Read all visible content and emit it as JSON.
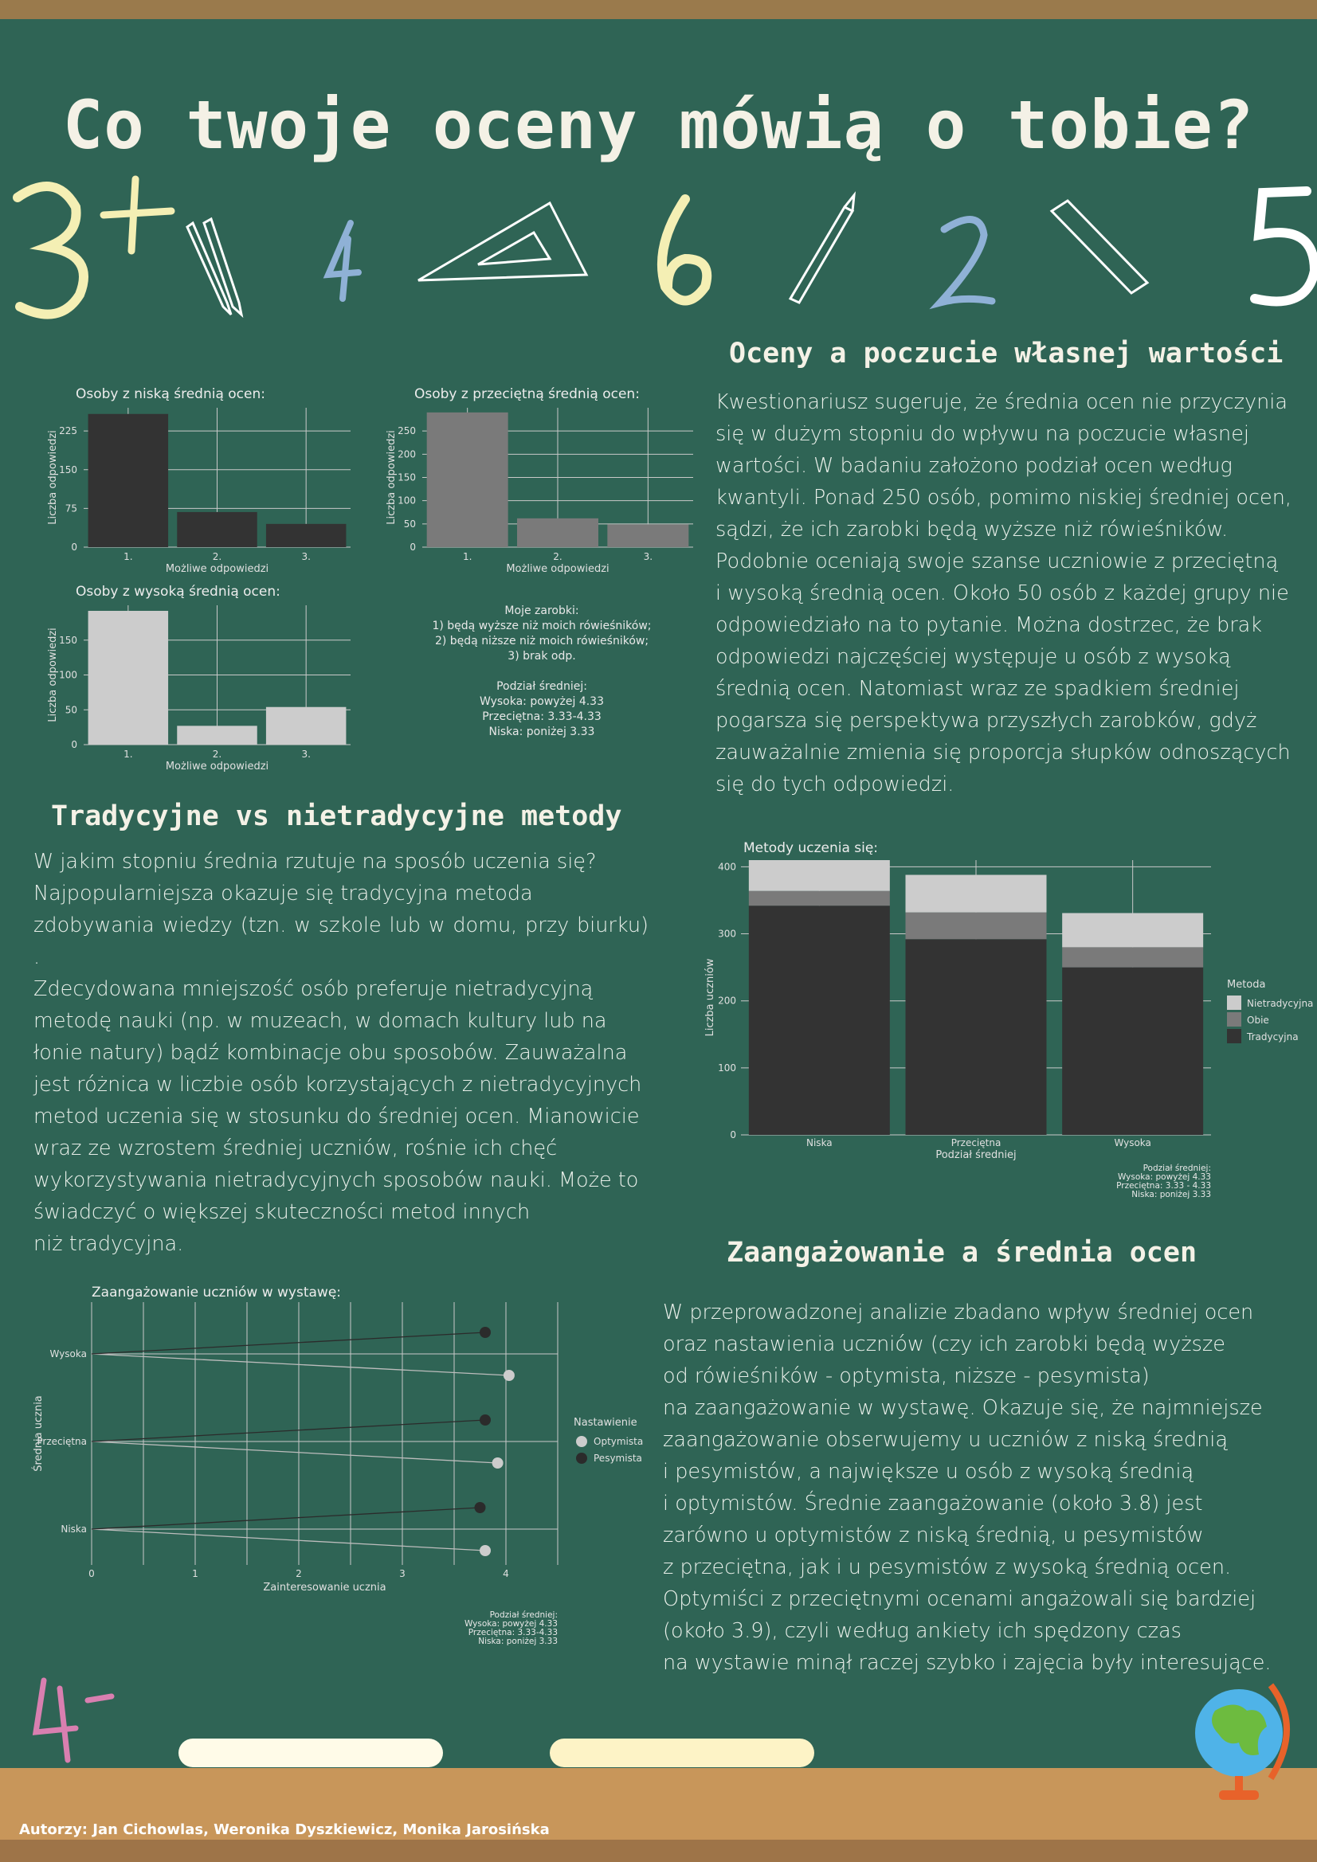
{
  "title": "Co twoje oceny mówią o tobie?",
  "sections": {
    "self_worth": {
      "title": "Oceny a poczucie własnej wartości",
      "lines": [
        "Kwestionariusz sugeruje, że średnia ocen nie przyczynia",
        "się w dużym stopniu do wpływu na poczucie własnej",
        "wartości. W badaniu założono podział ocen według",
        "kwantyli. Ponad 250 osób, pomimo niskiej średniej ocen,",
        "sądzi, że ich zarobki będą wyższe niż rówieśników.",
        "Podobnie oceniają swoje szanse uczniowie z przeciętną",
        " i wysoką średnią ocen. Około 50 osób z każdej grupy nie",
        "odpowiedziało na to pytanie. Można dostrzec, że brak",
        "odpowiedzi najczęściej występuje u osób z wysoką",
        "średnią ocen. Natomiast wraz ze spadkiem średniej",
        "pogarsza się perspektywa przyszłych zarobków, gdyż",
        "zauważalnie zmienia się proporcja słupków odnoszących",
        "się do tych odpowiedzi."
      ]
    },
    "methods": {
      "title": "Tradycyjne vs nietradycyjne metody",
      "lines": [
        "W jakim stopniu średnia rzutuje na sposób uczenia się?",
        "   Najpopularniejsza okazuje się tradycyjna metoda",
        "zdobywania wiedzy (tzn. w szkole lub w domu, przy biurku) .",
        "Zdecydowana mniejszość osób preferuje nietradycyjną",
        "metodę nauki (np. w muzeach, w domach kultury lub na",
        "łonie natury) bądź kombinacje obu sposobów.  Zauważalna",
        "jest różnica w liczbie osób korzystających z nietradycyjnych",
        "metod uczenia się w stosunku do średniej ocen. Mianowicie",
        "wraz ze wzrostem średniej uczniów, rośnie ich chęć",
        "wykorzystywania nietradycyjnych sposobów nauki. Może to",
        "świadczyć o większej skuteczności metod innych",
        " niż tradycyjna."
      ]
    },
    "engagement": {
      "title": "Zaangażowanie a średnia ocen",
      "lines": [
        "W przeprowadzonej analizie zbadano wpływ średniej ocen",
        "oraz nastawienia uczniów (czy ich zarobki będą wyższe",
        "  od rówieśników - optymista, niższe - pesymista)",
        " na zaangażowanie w wystawę. Okazuje się, że najmniejsze",
        "zaangażowanie obserwujemy u uczniów z niską średnią",
        "i pesymistów, a największe u osób z wysoką średnią",
        "  i optymistów. Średnie zaangażowanie (około 3.8) jest",
        "zarówno u optymistów z niską średnią, u pesymistów",
        "  z przeciętna, jak i u pesymistów z wysoką średnią ocen.",
        "Optymiści z przeciętnymi ocenami angażowali się bardziej",
        "(około 3.9), czyli według ankiety ich spędzony czas",
        " na wystawie minął raczej szybko i zajęcia były interesujące."
      ]
    }
  },
  "legend_note": {
    "heading": "Moje zarobki:",
    "items": [
      "1) będą wyższe niż moich rówieśników;",
      "2) będą niższe niż moich rówieśników;",
      "3) brak odp."
    ],
    "split_heading": "Podział średniej:",
    "split": [
      "Wysoka: powyżej 4.33",
      "Przeciętna: 3.33-4.33",
      "Niska: poniżej 3.33"
    ]
  },
  "methods_note": [
    "Podział średniej:",
    "Wysoka: powyżej 4.33",
    "Przeciętna: 3.33 - 4.33",
    "Niska: poniżej 3.33"
  ],
  "engagement_note": [
    "Podział średniej:",
    "Wysoka: powyżej 4.33",
    "Przeciętna: 3.33-4.33",
    "Niska: poniżej 3.33"
  ],
  "authors": "Autorzy: Jan Cichowlas, Weronika Dyszkiewicz, Monika Jarosińska",
  "decor": {
    "chalk_digits": [
      "3+",
      "4",
      "6",
      "2",
      "5",
      "4-"
    ],
    "chalk_colors": [
      "#fffbe8",
      "#fdf3c6"
    ]
  },
  "chart_data": [
    {
      "id": "low",
      "type": "bar",
      "title": "Osoby z niską średnią ocen:",
      "xlabel": "Możliwe odpowiedzi",
      "ylabel": "Liczba odpowiedzi",
      "categories": [
        "1.",
        "2.",
        "3."
      ],
      "values": [
        258,
        68,
        45
      ],
      "yticks": [
        0,
        75,
        150,
        225
      ],
      "ylim": [
        0,
        270
      ],
      "color": "#333333"
    },
    {
      "id": "mid",
      "type": "bar",
      "title": "Osoby z przeciętną średnią ocen:",
      "xlabel": "Możliwe odpowiedzi",
      "ylabel": "Liczba odpowiedzi",
      "categories": [
        "1.",
        "2.",
        "3."
      ],
      "values": [
        290,
        62,
        49
      ],
      "yticks": [
        0,
        50,
        100,
        150,
        200,
        250
      ],
      "ylim": [
        0,
        300
      ],
      "color": "#7a7a7a"
    },
    {
      "id": "high",
      "type": "bar",
      "title": "Osoby z wysoką średnią ocen:",
      "xlabel": "Możliwe odpowiedzi",
      "ylabel": "Liczba odpowiedzi",
      "categories": [
        "1.",
        "2.",
        "3."
      ],
      "values": [
        192,
        27,
        54
      ],
      "yticks": [
        0,
        50,
        100,
        150
      ],
      "ylim": [
        0,
        200
      ],
      "color": "#cccccc"
    },
    {
      "id": "methods",
      "type": "bar",
      "stacked": true,
      "title": "Metody uczenia się:",
      "xlabel": "Podział średniej",
      "ylabel": "Liczba uczniów",
      "categories": [
        "Niska",
        "Przeciętna",
        "Wysoka"
      ],
      "yticks": [
        0,
        100,
        200,
        300,
        400
      ],
      "ylim": [
        0,
        410
      ],
      "legend_title": "Metoda",
      "series": [
        {
          "name": "Tradycyjna",
          "values": [
            342,
            292,
            250
          ],
          "color": "#333333"
        },
        {
          "name": "Obie",
          "values": [
            22,
            40,
            30
          ],
          "color": "#7a7a7a"
        },
        {
          "name": "Nietradycyjna",
          "values": [
            46,
            56,
            51
          ],
          "color": "#cccccc"
        }
      ]
    },
    {
      "id": "engagement",
      "type": "scatter",
      "title": "Zaangażowanie uczniów w wystawę:",
      "xlabel": "Zainteresowanie ucznia",
      "ylabel": "Średnia ucznia",
      "categories": [
        "Niska",
        "Przeciętna",
        "Wysoka"
      ],
      "xticks": [
        0,
        1,
        2,
        3,
        4
      ],
      "xlim": [
        0,
        4.5
      ],
      "legend_title": "Nastawienie",
      "series": [
        {
          "name": "Optymista",
          "values": [
            3.8,
            3.92,
            4.03
          ],
          "color": "#cccccc"
        },
        {
          "name": "Pesymista",
          "values": [
            3.75,
            3.8,
            3.8
          ],
          "color": "#2b2b2b"
        }
      ]
    }
  ]
}
